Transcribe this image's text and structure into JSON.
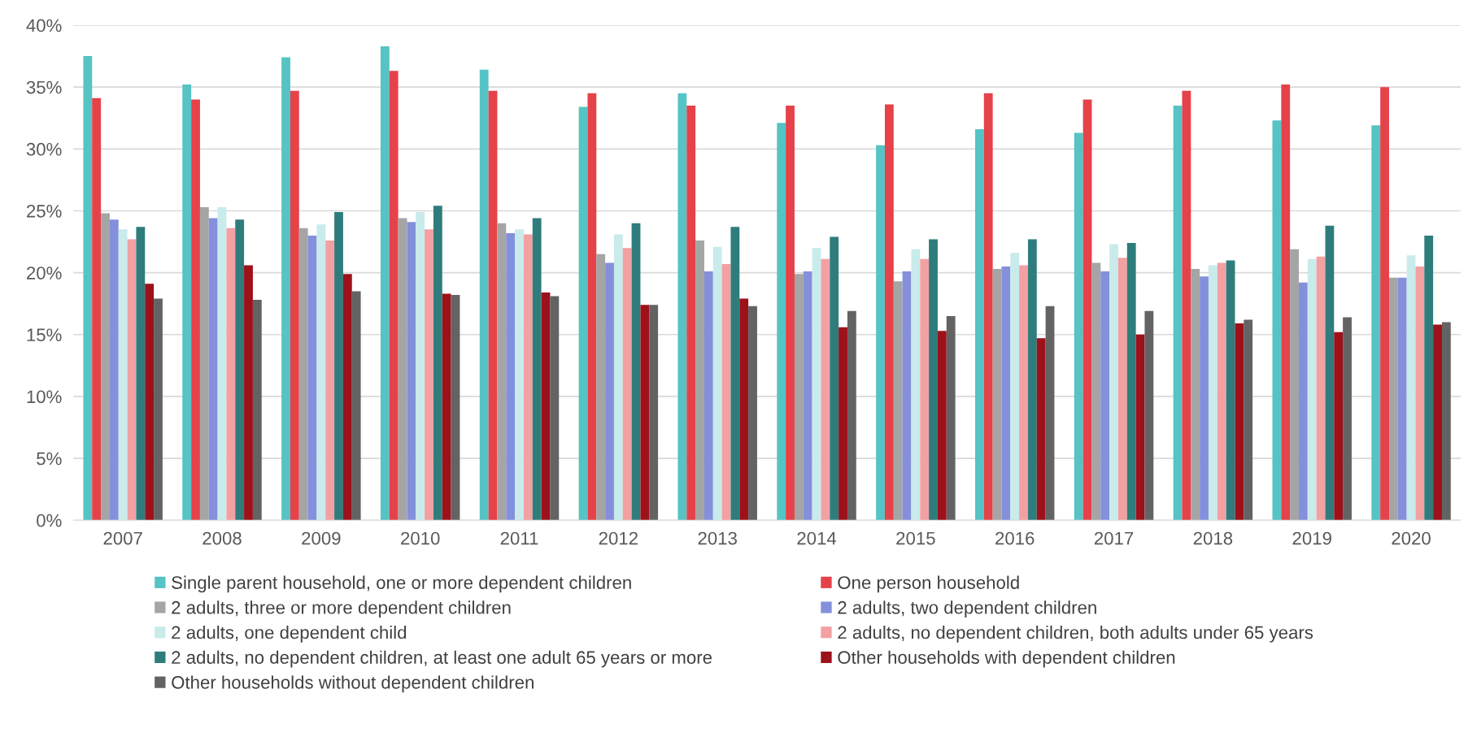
{
  "chart_data": {
    "type": "bar",
    "categories": [
      "2007",
      "2008",
      "2009",
      "2010",
      "2011",
      "2012",
      "2013",
      "2014",
      "2015",
      "2016",
      "2017",
      "2018",
      "2019",
      "2020"
    ],
    "series": [
      {
        "name": "Single parent household, one or more dependent children",
        "color": "#56c3c4",
        "values": [
          37.5,
          35.2,
          37.4,
          38.3,
          36.4,
          33.4,
          34.5,
          32.1,
          30.3,
          31.6,
          31.3,
          33.5,
          32.3,
          31.9
        ]
      },
      {
        "name": "One person household",
        "color": "#e5424a",
        "values": [
          34.1,
          34.0,
          34.7,
          36.3,
          34.7,
          34.5,
          33.5,
          33.5,
          33.6,
          34.5,
          34.0,
          34.7,
          35.2,
          35.0
        ]
      },
      {
        "name": "2 adults, three or more dependent children",
        "color": "#a5a5a5",
        "values": [
          24.8,
          25.3,
          23.6,
          24.4,
          24.0,
          21.5,
          22.6,
          19.9,
          19.3,
          20.3,
          20.8,
          20.3,
          21.9,
          19.6
        ]
      },
      {
        "name": "2 adults, two dependent children",
        "color": "#8490db",
        "values": [
          24.3,
          24.4,
          23.0,
          24.1,
          23.2,
          20.8,
          20.1,
          20.1,
          20.1,
          20.5,
          20.1,
          19.7,
          19.2,
          19.6
        ]
      },
      {
        "name": "2 adults, one dependent child",
        "color": "#c9ebeb",
        "values": [
          23.5,
          25.3,
          23.9,
          24.9,
          23.5,
          23.1,
          22.1,
          22.0,
          21.9,
          21.6,
          22.3,
          20.6,
          21.1,
          21.4
        ]
      },
      {
        "name": "2 adults, no dependent children, both adults under 65 years",
        "color": "#f3a0a3",
        "values": [
          22.7,
          23.6,
          22.6,
          23.5,
          23.1,
          22.0,
          20.7,
          21.1,
          21.1,
          20.6,
          21.2,
          20.8,
          21.3,
          20.5
        ]
      },
      {
        "name": "2 adults, no dependent children, at least one adult 65 years or more",
        "color": "#2e7d7c",
        "values": [
          23.7,
          24.3,
          24.9,
          25.4,
          24.4,
          24.0,
          23.7,
          22.9,
          22.7,
          22.7,
          22.4,
          21.0,
          23.8,
          23.0
        ]
      },
      {
        "name": "Other households with dependent children",
        "color": "#9d111a",
        "values": [
          19.1,
          20.6,
          19.9,
          18.3,
          18.4,
          17.4,
          17.9,
          15.6,
          15.3,
          14.7,
          15.0,
          15.9,
          15.2,
          15.8
        ]
      },
      {
        "name": "Other households without dependent children",
        "color": "#636363",
        "values": [
          17.9,
          17.8,
          18.5,
          18.2,
          18.1,
          17.4,
          17.3,
          16.9,
          16.5,
          17.3,
          16.9,
          16.2,
          16.4,
          16.0
        ]
      }
    ],
    "ylim": [
      0,
      40
    ],
    "yticks": [
      {
        "value": 0,
        "label": "0%"
      },
      {
        "value": 5,
        "label": "5%"
      },
      {
        "value": 10,
        "label": "10%"
      },
      {
        "value": 15,
        "label": "15%"
      },
      {
        "value": 20,
        "label": "20%"
      },
      {
        "value": 25,
        "label": "25%"
      },
      {
        "value": 30,
        "label": "30%"
      },
      {
        "value": 35,
        "label": "35%"
      },
      {
        "value": 40,
        "label": "40%"
      }
    ],
    "grid": "y",
    "legend": "bottom"
  }
}
